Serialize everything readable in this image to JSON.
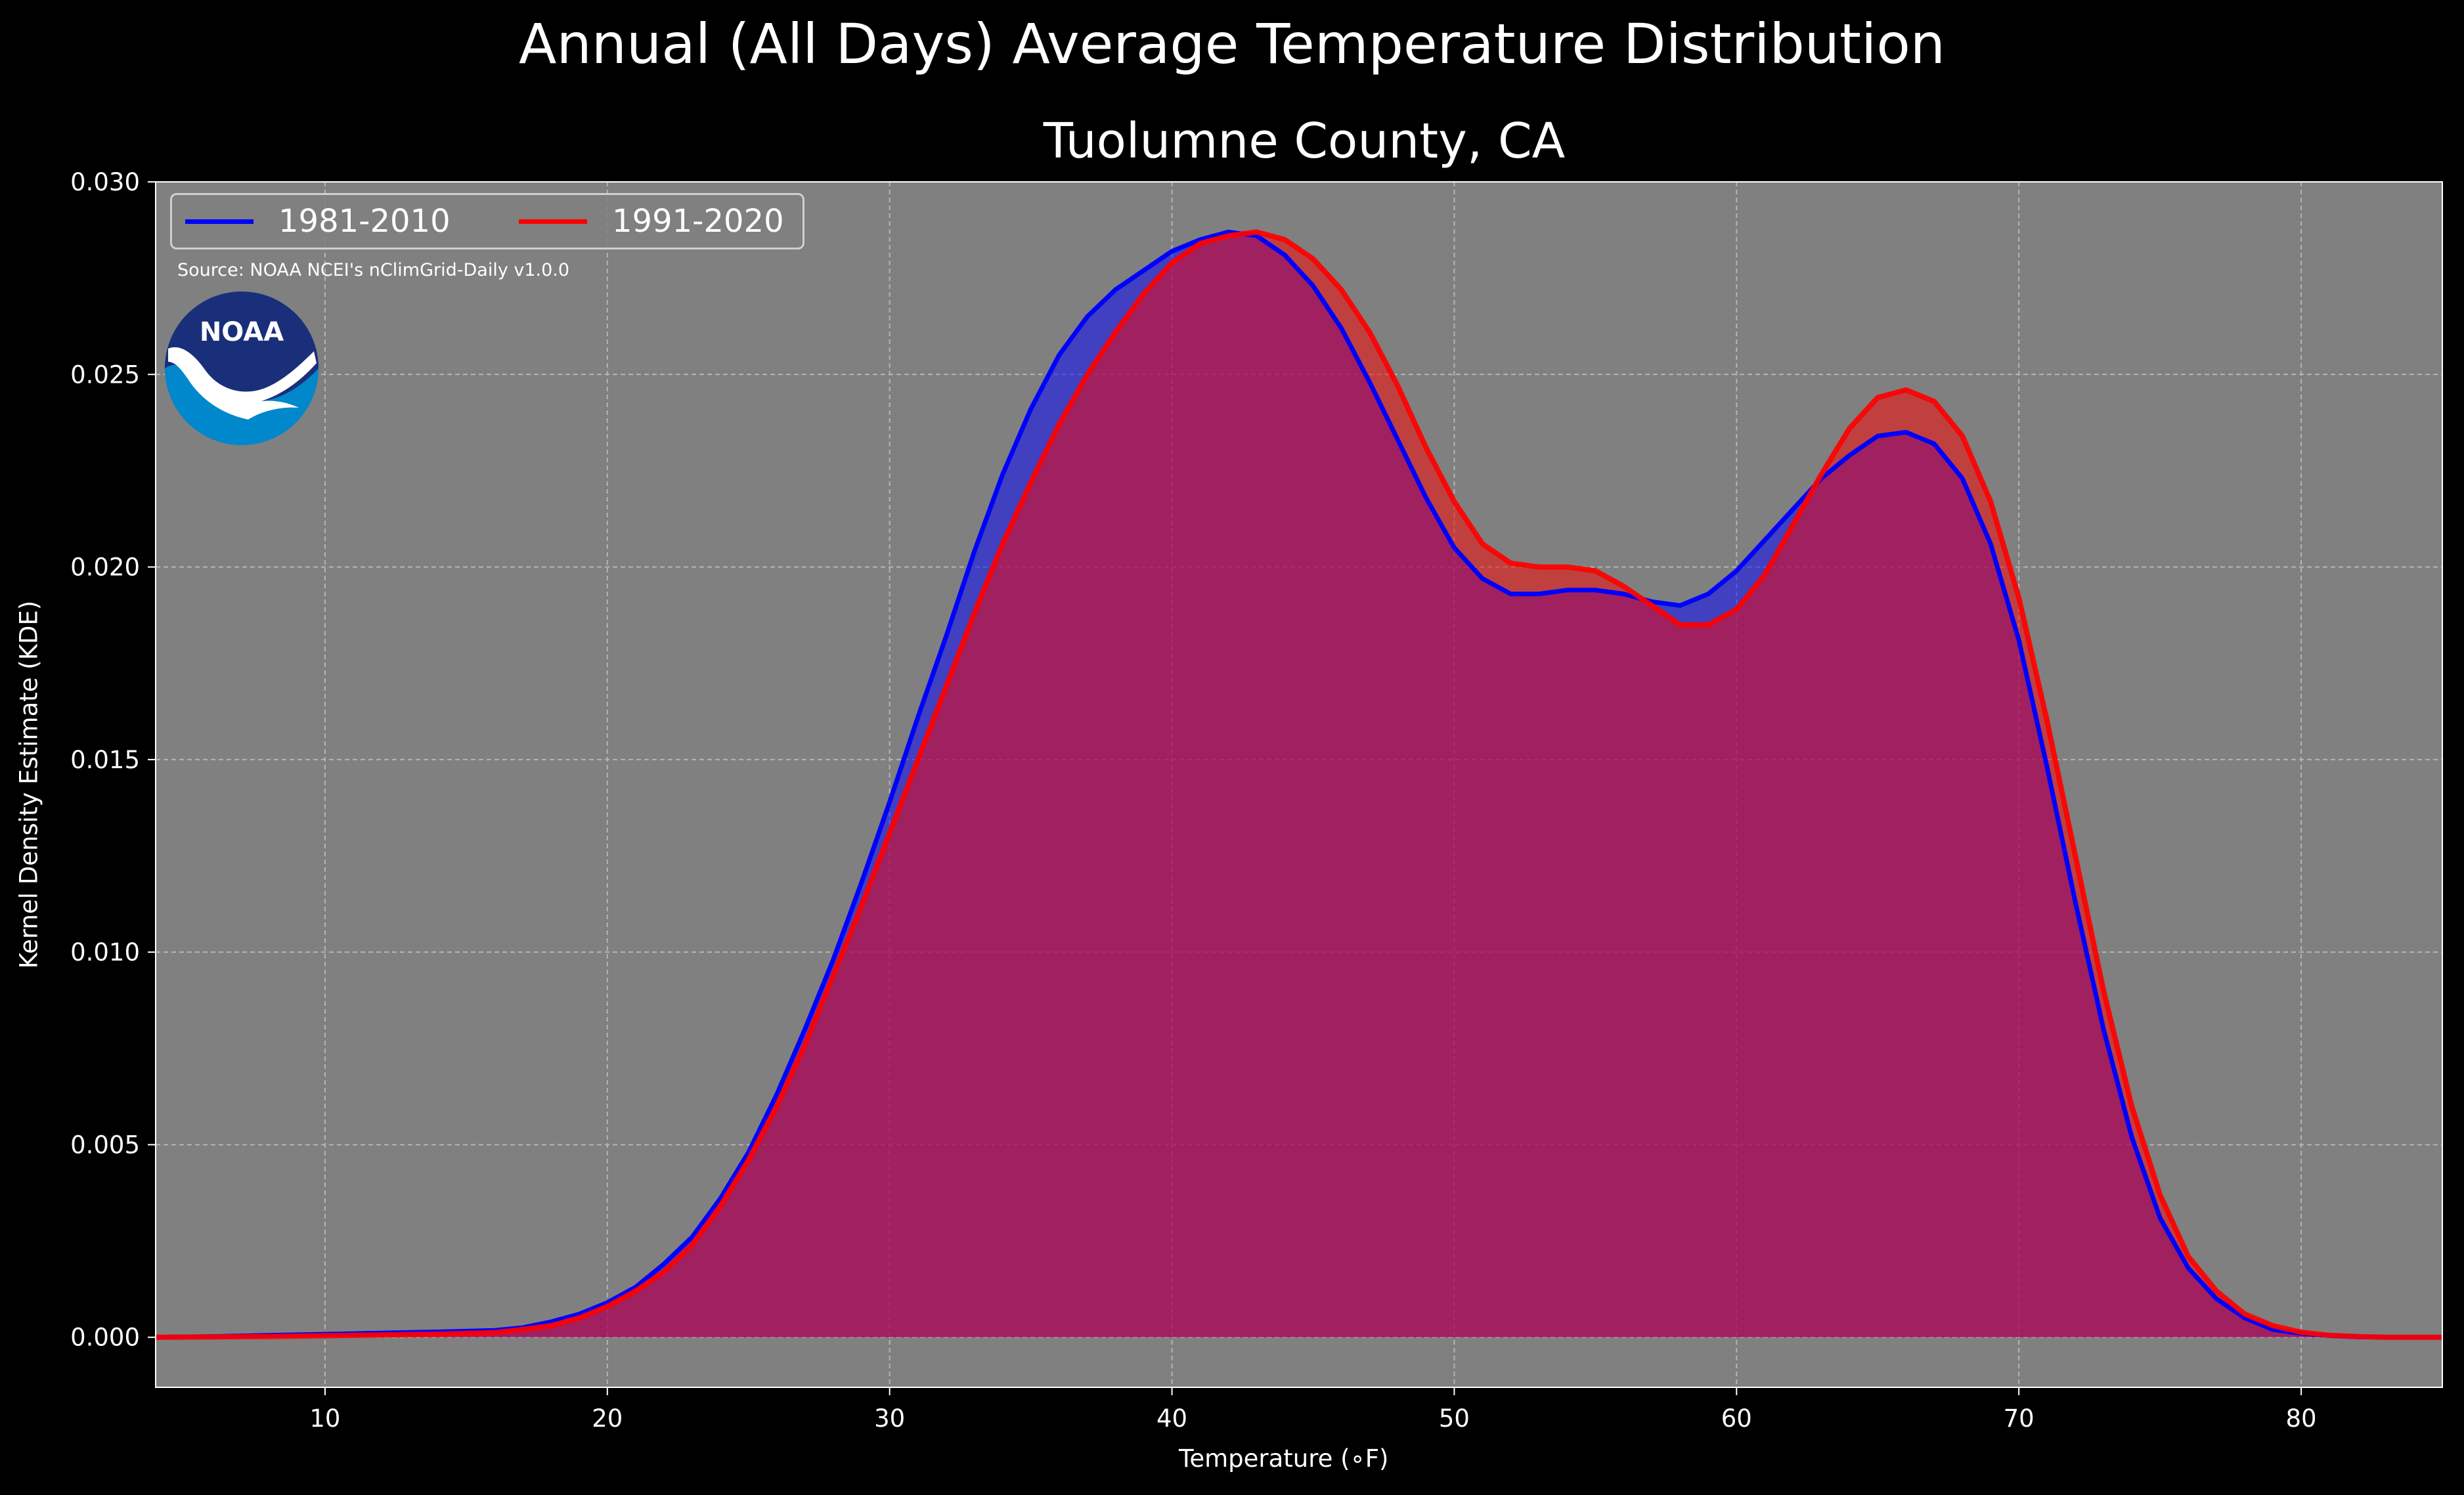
{
  "suptitle": "Annual (All Days) Average Temperature Distribution",
  "title": "Tuolumne County, CA",
  "source": "Source: NOAA NCEI's nClimGrid-Daily v1.0.0",
  "logo_text": "NOAA",
  "colors": {
    "background": "#000000",
    "plot_bg": "#808080",
    "series1": "#0000ff",
    "series2": "#ff0000",
    "overlap_fill": "#a01d5c"
  },
  "chart_data": {
    "type": "area",
    "title": "Tuolumne County, CA",
    "xlabel": "Temperature ($^\\circ$F)",
    "xlabel_display": "Temperature (∘F)",
    "ylabel": "Kernel Density Estimate (KDE)",
    "xlim": [
      4,
      85
    ],
    "ylim": [
      -0.0013,
      0.03
    ],
    "xticks": [
      10,
      20,
      30,
      40,
      50,
      60,
      70,
      80
    ],
    "yticks": [
      "0.000",
      "0.005",
      "0.010",
      "0.015",
      "0.020",
      "0.025",
      "0.030"
    ],
    "grid": true,
    "legend": "upper left",
    "series": [
      {
        "name": "1981-2010",
        "color": "#0000ff",
        "x": [
          4,
          6,
          8,
          10,
          12,
          14,
          16,
          17,
          18,
          19,
          20,
          21,
          22,
          23,
          24,
          25,
          26,
          27,
          28,
          29,
          30,
          31,
          32,
          33,
          34,
          35,
          36,
          37,
          38,
          39,
          40,
          41,
          42,
          43,
          44,
          45,
          46,
          47,
          48,
          49,
          50,
          51,
          52,
          53,
          54,
          55,
          56,
          57,
          58,
          59,
          60,
          61,
          62,
          63,
          64,
          65,
          66,
          67,
          68,
          69,
          70,
          71,
          72,
          73,
          74,
          75,
          76,
          77,
          78,
          79,
          80,
          81,
          82,
          83,
          84,
          85
        ],
        "y": [
          0.0,
          2e-05,
          5e-05,
          8e-05,
          0.00011,
          0.00014,
          0.00018,
          0.00025,
          0.0004,
          0.0006,
          0.0009,
          0.0013,
          0.0019,
          0.0026,
          0.0036,
          0.0048,
          0.0063,
          0.008,
          0.0098,
          0.0118,
          0.0139,
          0.0161,
          0.0182,
          0.0204,
          0.0224,
          0.0241,
          0.0255,
          0.0265,
          0.0272,
          0.0277,
          0.0282,
          0.0285,
          0.0287,
          0.0286,
          0.0281,
          0.0273,
          0.0262,
          0.0248,
          0.0233,
          0.0218,
          0.0205,
          0.0197,
          0.0193,
          0.0193,
          0.0194,
          0.0194,
          0.0193,
          0.0191,
          0.019,
          0.0193,
          0.0199,
          0.0207,
          0.0215,
          0.0223,
          0.0229,
          0.0234,
          0.0235,
          0.0232,
          0.0223,
          0.0206,
          0.0181,
          0.0148,
          0.0113,
          0.008,
          0.0052,
          0.0031,
          0.0018,
          0.001,
          0.0005,
          0.0002,
          0.0001,
          4e-05,
          1e-05,
          0.0,
          0.0,
          0.0
        ]
      },
      {
        "name": "1991-2020",
        "color": "#ff0000",
        "x": [
          4,
          6,
          8,
          10,
          12,
          14,
          16,
          17,
          18,
          19,
          20,
          21,
          22,
          23,
          24,
          25,
          26,
          27,
          28,
          29,
          30,
          31,
          32,
          33,
          34,
          35,
          36,
          37,
          38,
          39,
          40,
          41,
          42,
          43,
          44,
          45,
          46,
          47,
          48,
          49,
          50,
          51,
          52,
          53,
          54,
          55,
          56,
          57,
          58,
          59,
          60,
          61,
          62,
          63,
          64,
          65,
          66,
          67,
          68,
          69,
          70,
          71,
          72,
          73,
          74,
          75,
          76,
          77,
          78,
          79,
          80,
          81,
          82,
          83,
          84,
          85
        ],
        "y": [
          0.0,
          1e-05,
          2e-05,
          4e-05,
          6e-05,
          8e-05,
          0.00012,
          0.0002,
          0.0003,
          0.0005,
          0.0008,
          0.0012,
          0.0017,
          0.0024,
          0.0034,
          0.0046,
          0.006,
          0.0076,
          0.0094,
          0.0112,
          0.0131,
          0.015,
          0.0169,
          0.0188,
          0.0206,
          0.0222,
          0.0237,
          0.025,
          0.0261,
          0.0271,
          0.0279,
          0.0284,
          0.0286,
          0.0287,
          0.0285,
          0.028,
          0.0272,
          0.0261,
          0.0247,
          0.0231,
          0.0217,
          0.0206,
          0.0201,
          0.02,
          0.02,
          0.0199,
          0.0195,
          0.019,
          0.0185,
          0.0185,
          0.0189,
          0.0198,
          0.0211,
          0.0224,
          0.0236,
          0.0244,
          0.0246,
          0.0243,
          0.0234,
          0.0217,
          0.0192,
          0.016,
          0.0125,
          0.009,
          0.006,
          0.0037,
          0.0021,
          0.0012,
          0.0006,
          0.0003,
          0.00013,
          5e-05,
          2e-05,
          0.0,
          0.0,
          0.0
        ]
      }
    ]
  }
}
